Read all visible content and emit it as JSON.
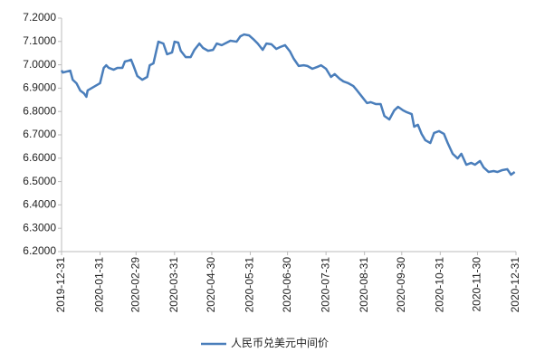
{
  "chart_data": {
    "type": "line",
    "legend": "bottom",
    "xlim": [
      "2019-12-31",
      "2020-12-31"
    ],
    "xticks": [
      "2019-12-31",
      "2020-01-31",
      "2020-02-29",
      "2020-03-31",
      "2020-04-30",
      "2020-05-31",
      "2020-06-30",
      "2020-07-31",
      "2020-08-31",
      "2020-09-30",
      "2020-10-31",
      "2020-11-30",
      "2020-12-31"
    ],
    "ylim": [
      6.2,
      7.2
    ],
    "yticks": [
      {
        "value": 6.2,
        "label": "6.2000"
      },
      {
        "value": 6.3,
        "label": "6.3000"
      },
      {
        "value": 6.4,
        "label": "6.4000"
      },
      {
        "value": 6.5,
        "label": "6.5000"
      },
      {
        "value": 6.6,
        "label": "6.6000"
      },
      {
        "value": 6.7,
        "label": "6.7000"
      },
      {
        "value": 6.8,
        "label": "6.8000"
      },
      {
        "value": 6.9,
        "label": "6.9000"
      },
      {
        "value": 7.0,
        "label": "7.0000"
      },
      {
        "value": 7.1,
        "label": "7.1000"
      },
      {
        "value": 7.2,
        "label": "7.2000"
      }
    ],
    "x": [
      "2019-12-31",
      "2020-01-01",
      "2020-01-07",
      "2020-01-09",
      "2020-01-12",
      "2020-01-15",
      "2020-01-18",
      "2020-01-20",
      "2020-01-21",
      "2020-01-31",
      "2020-02-03",
      "2020-02-05",
      "2020-02-07",
      "2020-02-11",
      "2020-02-14",
      "2020-02-18",
      "2020-02-20",
      "2020-02-23",
      "2020-02-25",
      "2020-02-27",
      "2020-03-01",
      "2020-03-05",
      "2020-03-09",
      "2020-03-11",
      "2020-03-14",
      "2020-03-18",
      "2020-03-22",
      "2020-03-25",
      "2020-03-29",
      "2020-03-31",
      "2020-04-03",
      "2020-04-05",
      "2020-04-09",
      "2020-04-13",
      "2020-04-16",
      "2020-04-20",
      "2020-04-23",
      "2020-04-27",
      "2020-05-01",
      "2020-05-04",
      "2020-05-08",
      "2020-05-12",
      "2020-05-15",
      "2020-05-20",
      "2020-05-23",
      "2020-05-26",
      "2020-05-30",
      "2020-06-03",
      "2020-06-06",
      "2020-06-10",
      "2020-06-13",
      "2020-06-17",
      "2020-06-21",
      "2020-06-24",
      "2020-06-28",
      "2020-07-02",
      "2020-07-05",
      "2020-07-09",
      "2020-07-13",
      "2020-07-16",
      "2020-07-20",
      "2020-07-24",
      "2020-07-27",
      "2020-07-31",
      "2020-08-04",
      "2020-08-07",
      "2020-08-11",
      "2020-08-14",
      "2020-08-18",
      "2020-08-22",
      "2020-08-25",
      "2020-08-29",
      "2020-09-02",
      "2020-09-05",
      "2020-09-09",
      "2020-09-13",
      "2020-09-16",
      "2020-09-20",
      "2020-09-24",
      "2020-09-27",
      "2020-10-01",
      "2020-10-04",
      "2020-10-08",
      "2020-10-10",
      "2020-10-13",
      "2020-10-16",
      "2020-10-19",
      "2020-10-23",
      "2020-10-26",
      "2020-10-30",
      "2020-11-03",
      "2020-11-06",
      "2020-11-10",
      "2020-11-14",
      "2020-11-17",
      "2020-11-21",
      "2020-11-25",
      "2020-11-28",
      "2020-12-02",
      "2020-12-05",
      "2020-12-09",
      "2020-12-13",
      "2020-12-16",
      "2020-12-20",
      "2020-12-24",
      "2020-12-27",
      "2020-12-30"
    ],
    "series": [
      {
        "name": "人民币兑美元中间价",
        "color": "#4a7ebb",
        "values": [
          6.976,
          6.967,
          6.975,
          6.936,
          6.921,
          6.89,
          6.878,
          6.863,
          6.89,
          6.921,
          6.987,
          6.998,
          6.987,
          6.979,
          6.987,
          6.987,
          7.014,
          7.018,
          7.022,
          6.995,
          6.952,
          6.936,
          6.948,
          6.998,
          7.006,
          7.099,
          7.091,
          7.045,
          7.053,
          7.099,
          7.095,
          7.06,
          7.033,
          7.033,
          7.064,
          7.091,
          7.072,
          7.06,
          7.064,
          7.091,
          7.084,
          7.095,
          7.103,
          7.099,
          7.122,
          7.13,
          7.126,
          7.107,
          7.091,
          7.064,
          7.091,
          7.088,
          7.068,
          7.076,
          7.084,
          7.057,
          7.026,
          6.995,
          6.998,
          6.995,
          6.983,
          6.991,
          6.998,
          6.983,
          6.948,
          6.96,
          6.94,
          6.929,
          6.921,
          6.909,
          6.89,
          6.863,
          6.836,
          6.84,
          6.832,
          6.832,
          6.781,
          6.766,
          6.805,
          6.82,
          6.805,
          6.797,
          6.789,
          6.735,
          6.743,
          6.704,
          6.677,
          6.665,
          6.708,
          6.716,
          6.704,
          6.665,
          6.619,
          6.599,
          6.619,
          6.572,
          6.58,
          6.572,
          6.588,
          6.56,
          6.541,
          6.545,
          6.541,
          6.549,
          6.553,
          6.529,
          6.541
        ]
      }
    ]
  }
}
